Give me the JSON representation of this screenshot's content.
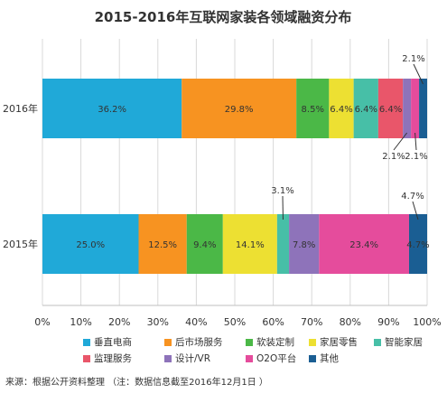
{
  "chart_data": {
    "type": "bar",
    "orientation": "horizontal",
    "stacked": true,
    "title": "2015-2016年互联网家装各领域融资分布",
    "categories": [
      "2016年",
      "2015年"
    ],
    "xlim": [
      0,
      100
    ],
    "x_tick_labels": [
      "0%",
      "10%",
      "20%",
      "30%",
      "40%",
      "50%",
      "60%",
      "70%",
      "80%",
      "90%",
      "100%"
    ],
    "grid": true,
    "legend_position": "bottom",
    "series": [
      {
        "name": "垂直电商",
        "color": "#20A9D8",
        "values": [
          36.2,
          25.0
        ],
        "labels": [
          "36.2%",
          "25.0%"
        ]
      },
      {
        "name": "后市场服务",
        "color": "#F79321",
        "values": [
          29.8,
          12.5
        ],
        "labels": [
          "29.8%",
          "12.5%"
        ]
      },
      {
        "name": "软装定制",
        "color": "#4BB847",
        "values": [
          8.5,
          9.4
        ],
        "labels": [
          "8.5%",
          "9.4%"
        ]
      },
      {
        "name": "家居零售",
        "color": "#EDE032",
        "values": [
          6.4,
          14.1
        ],
        "labels": [
          "6.4%",
          "14.1%"
        ]
      },
      {
        "name": "智能家居",
        "color": "#47BFA7",
        "values": [
          6.4,
          3.1
        ],
        "labels": [
          "6.4%",
          "3.1%"
        ]
      },
      {
        "name": "监理服务",
        "color": "#E9566A",
        "values": [
          6.4,
          0
        ],
        "labels": [
          "6.4%",
          ""
        ]
      },
      {
        "name": "设计/VR",
        "color": "#8E73BA",
        "values": [
          2.1,
          7.8
        ],
        "labels": [
          "2.1%",
          "7.8%"
        ]
      },
      {
        "name": "O2O平台",
        "color": "#E54C9C",
        "values": [
          2.1,
          23.4
        ],
        "labels": [
          "2.1%",
          "23.4%"
        ]
      },
      {
        "name": "其他",
        "color": "#1A5E93",
        "values": [
          2.1,
          4.7
        ],
        "labels": [
          "2.1%",
          "4.7%"
        ]
      }
    ]
  },
  "source": "来源：根据公开资料整理 （注：数据信息截至2016年12月1日 ）"
}
